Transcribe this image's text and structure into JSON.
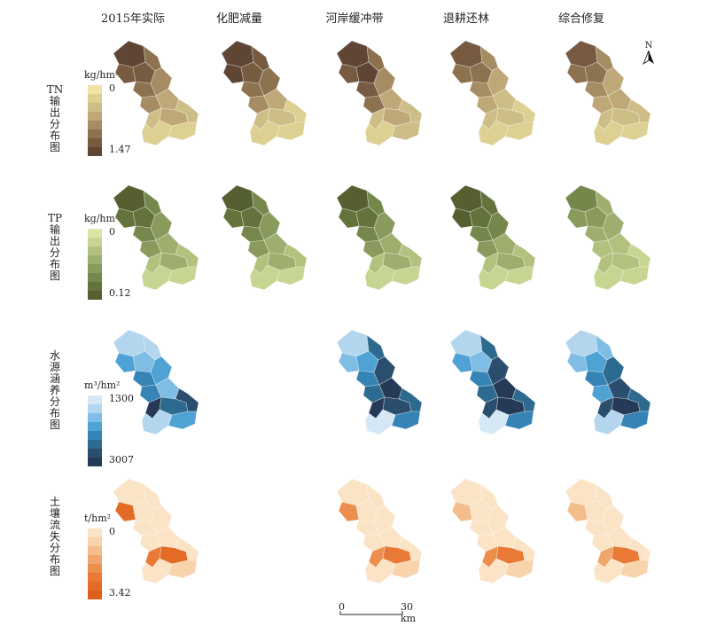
{
  "columns": [
    {
      "title": "2015年实际"
    },
    {
      "title": "化肥减量"
    },
    {
      "title": "河岸缓冲带"
    },
    {
      "title": "退耕还林"
    },
    {
      "title": "综合修复"
    }
  ],
  "rows": [
    {
      "title": "TN输出分布图",
      "unit": "kg/hm²",
      "min": "0",
      "max": "1.47",
      "ramp": [
        "#efe3a8",
        "#ddd093",
        "#cdbd86",
        "#bea877",
        "#a68c63",
        "#8d7250",
        "#765b40",
        "#5f4634"
      ],
      "present": [
        true,
        true,
        true,
        true,
        true
      ],
      "levels": [
        [
          7,
          6,
          6,
          5,
          5,
          4,
          4,
          3,
          3,
          2,
          2,
          1,
          1
        ],
        [
          7,
          7,
          6,
          6,
          5,
          5,
          4,
          3,
          2,
          2,
          1,
          1,
          1
        ],
        [
          7,
          6,
          7,
          5,
          6,
          4,
          5,
          3,
          3,
          2,
          2,
          2,
          1
        ],
        [
          6,
          5,
          5,
          4,
          4,
          3,
          3,
          2,
          2,
          2,
          1,
          1,
          1
        ],
        [
          6,
          5,
          5,
          4,
          4,
          3,
          3,
          3,
          2,
          2,
          2,
          1,
          1
        ]
      ]
    },
    {
      "title": "TP输出分布图",
      "unit": "kg/hm²",
      "min": "0",
      "max": "0.12",
      "ramp": [
        "#dce7a6",
        "#c7d592",
        "#b2c17e",
        "#9eae6e",
        "#8a9a5c",
        "#76874b",
        "#64733c",
        "#555f30"
      ],
      "present": [
        true,
        true,
        true,
        true,
        true
      ],
      "levels": [
        [
          7,
          6,
          6,
          5,
          5,
          4,
          4,
          3,
          3,
          2,
          2,
          1,
          1
        ],
        [
          7,
          6,
          6,
          5,
          5,
          4,
          4,
          3,
          3,
          2,
          2,
          1,
          1
        ],
        [
          7,
          6,
          6,
          5,
          5,
          4,
          4,
          3,
          3,
          2,
          2,
          1,
          1
        ],
        [
          7,
          7,
          6,
          6,
          5,
          5,
          4,
          3,
          3,
          2,
          2,
          1,
          1
        ],
        [
          5,
          4,
          4,
          3,
          3,
          3,
          2,
          2,
          2,
          2,
          1,
          1,
          1
        ]
      ]
    },
    {
      "title": "水源涵养分布图",
      "unit": "m³/hm²",
      "min": "1300",
      "max": "3007",
      "ramp": [
        "#d6e8f5",
        "#b3d6ee",
        "#7fbde5",
        "#4fa2d4",
        "#3584b5",
        "#2d6a8f",
        "#2b4e6e",
        "#253a57"
      ],
      "present": [
        true,
        false,
        true,
        true,
        true
      ],
      "levels": [
        [
          1,
          3,
          2,
          1,
          4,
          3,
          4,
          2,
          5,
          7,
          6,
          3,
          1
        ],
        [
          0,
          0,
          0,
          0,
          0,
          0,
          0,
          0,
          0,
          0,
          0,
          0,
          0
        ],
        [
          1,
          2,
          3,
          5,
          4,
          6,
          5,
          7,
          6,
          7,
          5,
          4,
          0
        ],
        [
          1,
          3,
          2,
          5,
          4,
          6,
          5,
          7,
          7,
          6,
          5,
          4,
          0
        ],
        [
          1,
          2,
          3,
          2,
          4,
          5,
          3,
          6,
          7,
          6,
          5,
          4,
          1
        ]
      ]
    },
    {
      "title": "土壤流失分布图",
      "unit": "t/hm²",
      "min": "0",
      "max": "3.42",
      "ramp": [
        "#fbe3c6",
        "#f8d3ac",
        "#f4bd8c",
        "#f0a56c",
        "#ec8f4e",
        "#e87a36",
        "#e36b26",
        "#dc5f1b"
      ],
      "present": [
        true,
        false,
        true,
        true,
        true
      ],
      "levels": [
        [
          0,
          6,
          0,
          0,
          0,
          0,
          0,
          0,
          6,
          5,
          0,
          1,
          0
        ],
        [
          0,
          0,
          0,
          0,
          0,
          0,
          0,
          0,
          0,
          0,
          0,
          0,
          0
        ],
        [
          0,
          4,
          0,
          0,
          0,
          0,
          0,
          0,
          5,
          4,
          0,
          1,
          0
        ],
        [
          0,
          2,
          0,
          0,
          0,
          0,
          0,
          0,
          5,
          4,
          0,
          1,
          0
        ],
        [
          0,
          2,
          0,
          0,
          0,
          0,
          0,
          0,
          5,
          3,
          0,
          1,
          0
        ]
      ]
    }
  ],
  "north_label": "N",
  "scale": {
    "start": "0",
    "end": "30 km"
  }
}
